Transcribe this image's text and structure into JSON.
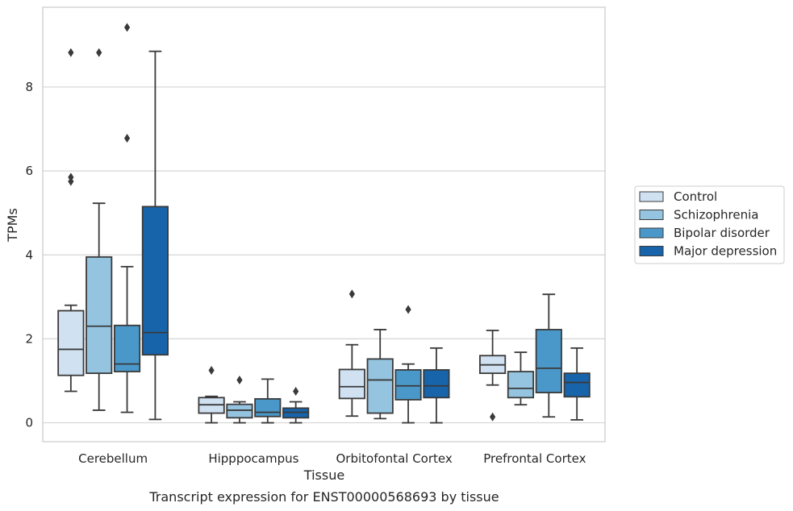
{
  "chart_data": {
    "type": "box",
    "xlabel": "Tissue",
    "ylabel": "TPMs",
    "caption": "Transcript expression for ENST00000568693 by tissue",
    "ylim": [
      -0.45,
      9.9
    ],
    "yticks": [
      0,
      2,
      4,
      6,
      8
    ],
    "grid": "horizontal",
    "legend_position": "right",
    "categories": [
      "Cerebellum",
      "Hipppocampus",
      "Orbitofontal Cortex",
      "Prefrontal Cortex"
    ],
    "series": [
      {
        "name": "Control",
        "color": "#d0e1f2",
        "boxes": [
          {
            "whisker_low": 0.75,
            "q1": 1.13,
            "median": 1.75,
            "q3": 2.67,
            "whisker_high": 2.8,
            "outliers": [
              5.75,
              5.85,
              8.82
            ]
          },
          {
            "whisker_low": 0.0,
            "q1": 0.23,
            "median": 0.43,
            "q3": 0.6,
            "whisker_high": 0.63,
            "outliers": [
              1.25
            ]
          },
          {
            "whisker_low": 0.16,
            "q1": 0.58,
            "median": 0.86,
            "q3": 1.27,
            "whisker_high": 1.86,
            "outliers": [
              3.07
            ]
          },
          {
            "whisker_low": 0.9,
            "q1": 1.18,
            "median": 1.38,
            "q3": 1.6,
            "whisker_high": 2.2,
            "outliers": [
              0.14
            ]
          }
        ]
      },
      {
        "name": "Schizophrenia",
        "color": "#94c4df",
        "boxes": [
          {
            "whisker_low": 0.3,
            "q1": 1.18,
            "median": 2.3,
            "q3": 3.95,
            "whisker_high": 5.23,
            "outliers": [
              8.82
            ]
          },
          {
            "whisker_low": 0.0,
            "q1": 0.12,
            "median": 0.3,
            "q3": 0.44,
            "whisker_high": 0.5,
            "outliers": [
              1.02
            ]
          },
          {
            "whisker_low": 0.1,
            "q1": 0.23,
            "median": 1.02,
            "q3": 1.52,
            "whisker_high": 2.22,
            "outliers": []
          },
          {
            "whisker_low": 0.43,
            "q1": 0.6,
            "median": 0.82,
            "q3": 1.22,
            "whisker_high": 1.68,
            "outliers": []
          }
        ]
      },
      {
        "name": "Bipolar disorder",
        "color": "#4a98c9",
        "boxes": [
          {
            "whisker_low": 0.25,
            "q1": 1.22,
            "median": 1.4,
            "q3": 2.32,
            "whisker_high": 3.72,
            "outliers": [
              6.78,
              9.42
            ]
          },
          {
            "whisker_low": 0.0,
            "q1": 0.15,
            "median": 0.25,
            "q3": 0.57,
            "whisker_high": 1.04,
            "outliers": []
          },
          {
            "whisker_low": 0.0,
            "q1": 0.55,
            "median": 0.88,
            "q3": 1.26,
            "whisker_high": 1.4,
            "outliers": [
              2.7
            ]
          },
          {
            "whisker_low": 0.14,
            "q1": 0.72,
            "median": 1.3,
            "q3": 2.22,
            "whisker_high": 3.06,
            "outliers": []
          }
        ]
      },
      {
        "name": "Major depression",
        "color": "#1764ab",
        "boxes": [
          {
            "whisker_low": 0.08,
            "q1": 1.62,
            "median": 2.15,
            "q3": 5.15,
            "whisker_high": 8.85,
            "outliers": []
          },
          {
            "whisker_low": 0.0,
            "q1": 0.12,
            "median": 0.25,
            "q3": 0.35,
            "whisker_high": 0.5,
            "outliers": [
              0.75
            ]
          },
          {
            "whisker_low": 0.0,
            "q1": 0.6,
            "median": 0.88,
            "q3": 1.26,
            "whisker_high": 1.78,
            "outliers": []
          },
          {
            "whisker_low": 0.07,
            "q1": 0.62,
            "median": 0.96,
            "q3": 1.18,
            "whisker_high": 1.78,
            "outliers": []
          }
        ]
      }
    ]
  }
}
